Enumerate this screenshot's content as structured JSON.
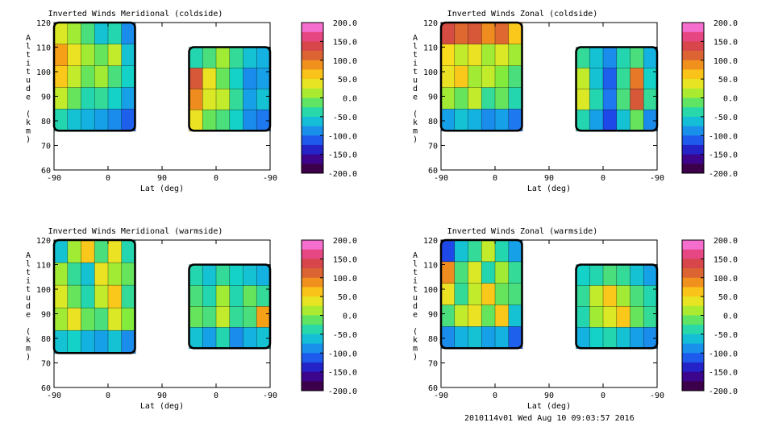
{
  "footer": "2010114v01 Wed Aug 10 09:03:57 2016",
  "chart_data": [
    {
      "type": "heatmap",
      "title": "Inverted Winds Meridional (coldside)",
      "xlabel": "Lat (deg)",
      "ylabel": "Altitude (km)",
      "xticks": [
        "-90",
        "0",
        "90",
        "0",
        "-90"
      ],
      "yticks": [
        "60",
        "70",
        "80",
        "90",
        "100",
        "110",
        "120"
      ],
      "ylim": [
        60,
        120
      ],
      "colorbar": {
        "min": -200,
        "max": 200,
        "labels": [
          "200.0",
          "150.0",
          "100.0",
          "50.0",
          "0.0",
          "-50.0",
          "-100.0",
          "-150.0",
          "-200.0"
        ]
      },
      "regions": [
        {
          "xrange": [
            -90,
            45
          ],
          "alt_range": [
            76,
            120
          ],
          "values": [
            [
              30,
              10,
              -20,
              -60,
              -40,
              -90
            ],
            [
              80,
              40,
              10,
              -10,
              20,
              -60
            ],
            [
              60,
              20,
              -10,
              10,
              -20,
              -50
            ],
            [
              20,
              -10,
              -40,
              -30,
              -50,
              -80
            ],
            [
              -40,
              -60,
              -70,
              -80,
              -90,
              -110
            ]
          ]
        },
        {
          "xrange": [
            135,
            270
          ],
          "alt_range": [
            76,
            110
          ],
          "values": [
            [
              -40,
              -20,
              10,
              -30,
              -60,
              -70
            ],
            [
              120,
              40,
              -10,
              -50,
              -90,
              -80
            ],
            [
              90,
              30,
              20,
              -30,
              -80,
              -60
            ],
            [
              40,
              -10,
              -20,
              -50,
              -90,
              -100
            ]
          ]
        }
      ]
    },
    {
      "type": "heatmap",
      "title": "Inverted Winds Zonal (coldside)",
      "xlabel": "Lat (deg)",
      "ylabel": "Altitude (km)",
      "xticks": [
        "-90",
        "0",
        "90",
        "0",
        "-90"
      ],
      "yticks": [
        "60",
        "70",
        "80",
        "90",
        "100",
        "110",
        "120"
      ],
      "ylim": [
        60,
        120
      ],
      "colorbar": {
        "min": -200,
        "max": 200,
        "labels": [
          "200.0",
          "150.0",
          "100.0",
          "50.0",
          "0.0",
          "-50.0",
          "-100.0",
          "-150.0",
          "-200.0"
        ]
      },
      "regions": [
        {
          "xrange": [
            -90,
            45
          ],
          "alt_range": [
            76,
            120
          ],
          "values": [
            [
              130,
              110,
              120,
              90,
              110,
              60
            ],
            [
              50,
              20,
              40,
              10,
              30,
              10
            ],
            [
              40,
              60,
              10,
              20,
              0,
              -20
            ],
            [
              10,
              -10,
              20,
              -30,
              -10,
              -40
            ],
            [
              -80,
              -60,
              -70,
              -90,
              -80,
              -100
            ]
          ]
        },
        {
          "xrange": [
            135,
            270
          ],
          "alt_range": [
            76,
            110
          ],
          "values": [
            [
              -30,
              -60,
              -90,
              -40,
              -20,
              -70
            ],
            [
              20,
              -60,
              -110,
              -30,
              100,
              -50
            ],
            [
              30,
              -40,
              -100,
              -20,
              120,
              -30
            ],
            [
              -40,
              -80,
              -120,
              -60,
              -10,
              -90
            ]
          ]
        }
      ]
    },
    {
      "type": "heatmap",
      "title": "Inverted Winds Meridional (warmside)",
      "xlabel": "Lat (deg)",
      "ylabel": "Altitude (km)",
      "xticks": [
        "-90",
        "0",
        "90",
        "0",
        "-90"
      ],
      "yticks": [
        "60",
        "70",
        "80",
        "90",
        "100",
        "110",
        "120"
      ],
      "ylim": [
        60,
        120
      ],
      "colorbar": {
        "min": -200,
        "max": 200,
        "labels": [
          "200.0",
          "150.0",
          "100.0",
          "50.0",
          "0.0",
          "-50.0",
          "-100.0",
          "-150.0",
          "-200.0"
        ]
      },
      "regions": [
        {
          "xrange": [
            -90,
            45
          ],
          "alt_range": [
            74,
            120
          ],
          "values": [
            [
              -60,
              10,
              60,
              -20,
              40,
              -40
            ],
            [
              10,
              -30,
              -60,
              40,
              10,
              -10
            ],
            [
              30,
              -10,
              -40,
              20,
              60,
              -30
            ],
            [
              10,
              40,
              -10,
              -20,
              30,
              0
            ],
            [
              -60,
              -50,
              -70,
              -80,
              -60,
              -90
            ]
          ]
        },
        {
          "xrange": [
            135,
            270
          ],
          "alt_range": [
            76,
            110
          ],
          "values": [
            [
              -40,
              -60,
              -30,
              -50,
              -60,
              -70
            ],
            [
              -20,
              -40,
              10,
              -40,
              -10,
              -30
            ],
            [
              -10,
              -20,
              20,
              -30,
              -20,
              80
            ],
            [
              -60,
              -80,
              -40,
              -90,
              -70,
              -60
            ]
          ]
        }
      ]
    },
    {
      "type": "heatmap",
      "title": "Inverted Winds Zonal (warmside)",
      "xlabel": "Lat (deg)",
      "ylabel": "Altitude (km)",
      "xticks": [
        "-90",
        "0",
        "90",
        "0",
        "-90"
      ],
      "yticks": [
        "60",
        "70",
        "80",
        "90",
        "100",
        "110",
        "120"
      ],
      "ylim": [
        60,
        120
      ],
      "colorbar": {
        "min": -200,
        "max": 200,
        "labels": [
          "200.0",
          "150.0",
          "100.0",
          "50.0",
          "0.0",
          "-50.0",
          "-100.0",
          "-150.0",
          "-200.0"
        ]
      },
      "regions": [
        {
          "xrange": [
            -90,
            45
          ],
          "alt_range": [
            76,
            120
          ],
          "values": [
            [
              -120,
              -60,
              -30,
              20,
              -40,
              -80
            ],
            [
              90,
              -20,
              30,
              -40,
              10,
              -30
            ],
            [
              40,
              -30,
              20,
              60,
              -10,
              -20
            ],
            [
              -20,
              20,
              40,
              -10,
              60,
              -60
            ],
            [
              -90,
              -70,
              -60,
              -80,
              -70,
              -110
            ]
          ]
        },
        {
          "xrange": [
            135,
            270
          ],
          "alt_range": [
            76,
            110
          ],
          "values": [
            [
              -50,
              -40,
              -20,
              -30,
              -60,
              -80
            ],
            [
              -30,
              20,
              60,
              10,
              -20,
              -40
            ],
            [
              -40,
              10,
              30,
              60,
              -10,
              -30
            ],
            [
              -70,
              -50,
              -40,
              -60,
              -80,
              -90
            ]
          ]
        }
      ]
    }
  ]
}
